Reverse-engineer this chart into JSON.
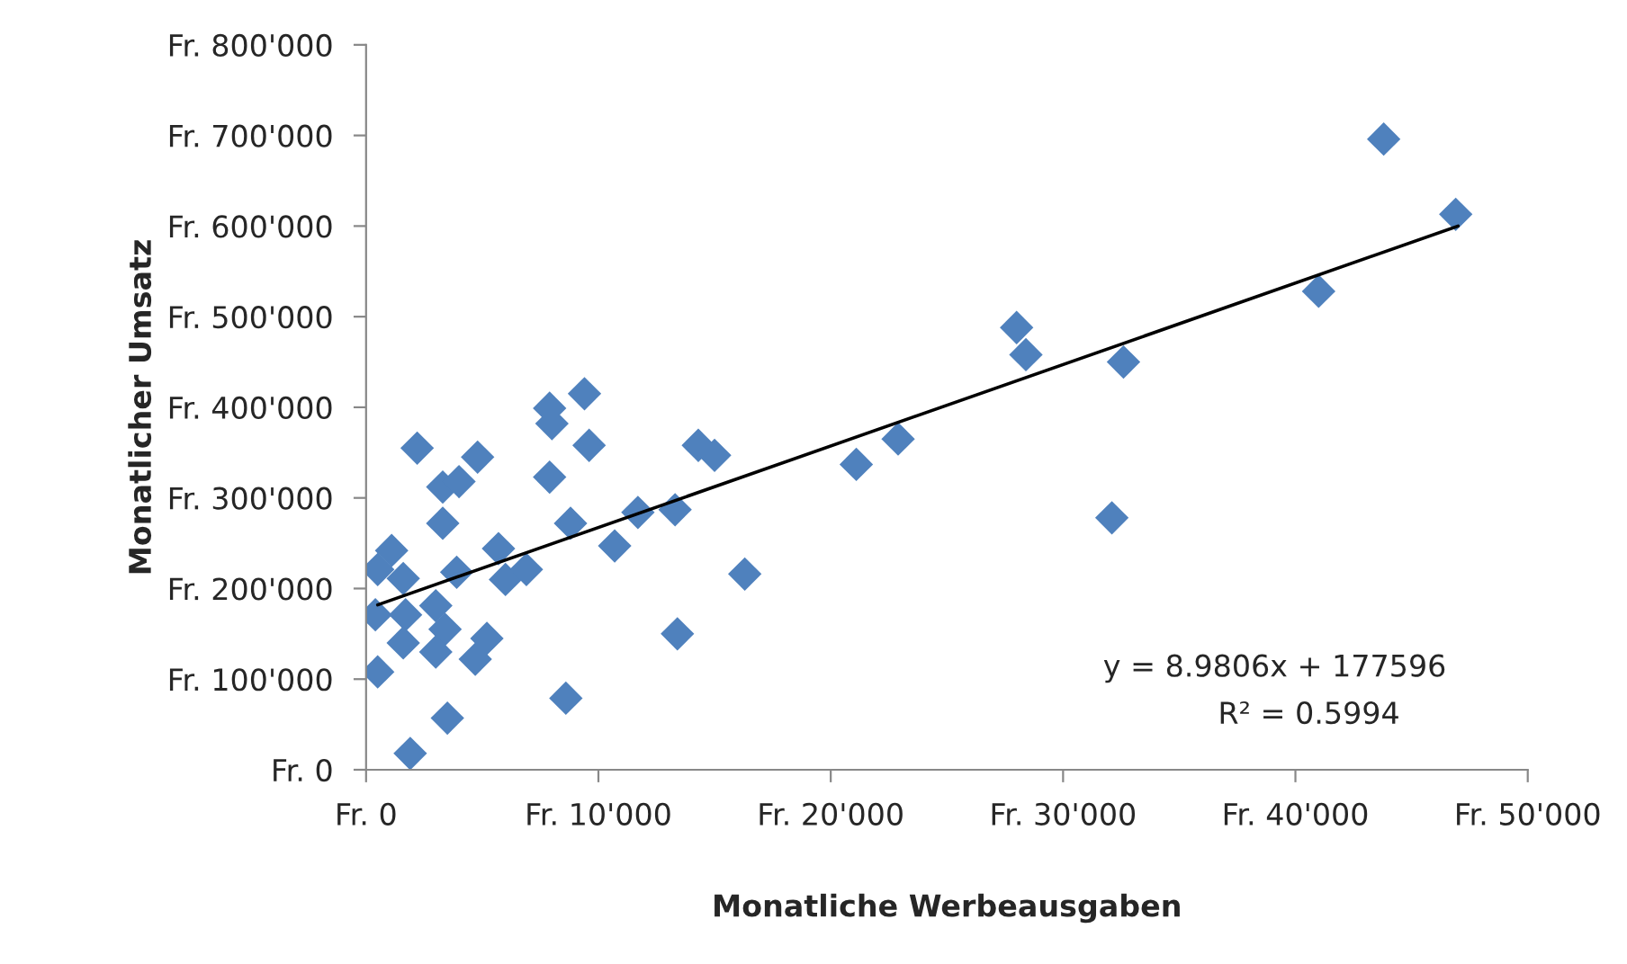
{
  "chart_data": {
    "type": "scatter",
    "xlabel": "Monatliche Werbeausgaben",
    "ylabel": "Monatlicher Umsatz",
    "grid": false,
    "xlim": [
      0,
      50000
    ],
    "xticks": [
      {
        "value": 0,
        "label": "Fr. 0"
      },
      {
        "value": 10000,
        "label": "Fr. 10'000"
      },
      {
        "value": 20000,
        "label": "Fr. 20'000"
      },
      {
        "value": 30000,
        "label": "Fr. 30'000"
      },
      {
        "value": 40000,
        "label": "Fr. 40'000"
      },
      {
        "value": 50000,
        "label": "Fr. 50'000"
      }
    ],
    "ylim": [
      0,
      800000
    ],
    "yticks": [
      {
        "value": 0,
        "label": "Fr. 0"
      },
      {
        "value": 100000,
        "label": "Fr. 100'000"
      },
      {
        "value": 200000,
        "label": "Fr. 200'000"
      },
      {
        "value": 300000,
        "label": "Fr. 300'000"
      },
      {
        "value": 400000,
        "label": "Fr. 400'000"
      },
      {
        "value": 500000,
        "label": "Fr. 500'000"
      },
      {
        "value": 600000,
        "label": "Fr. 600'000"
      },
      {
        "value": 700000,
        "label": "Fr. 700'000"
      },
      {
        "value": 800000,
        "label": "Fr. 800'000"
      }
    ],
    "series": [
      {
        "marker": "diamond",
        "color": "#4f81bd",
        "x": [
          2200,
          1100,
          500,
          1600,
          400,
          1700,
          3000,
          3400,
          1600,
          3000,
          500,
          5200,
          4700,
          3500,
          1900,
          8600,
          3300,
          4000,
          4800,
          3300,
          3900,
          5700,
          6000,
          6900,
          7900,
          7900,
          8000,
          9400,
          9600,
          8800,
          10700,
          11700,
          13300,
          14300,
          15000,
          13400,
          16300,
          21100,
          22900,
          28000,
          28400,
          32600,
          32100,
          41000,
          43800,
          46900
        ],
        "values": [
          355000,
          242000,
          221000,
          211000,
          171000,
          171000,
          181000,
          155000,
          140000,
          130000,
          108000,
          145000,
          122000,
          57000,
          18000,
          79000,
          312000,
          318000,
          345000,
          272000,
          218000,
          244000,
          210000,
          221000,
          323000,
          399000,
          382000,
          415000,
          358000,
          272000,
          247000,
          284000,
          287000,
          358000,
          347000,
          150000,
          216000,
          337000,
          365000,
          488000,
          458000,
          450000,
          278000,
          528000,
          696000,
          613000
        ]
      },
      {
        "type": "line",
        "color": "#000000",
        "x": [
          500,
          47000
        ],
        "values": [
          182000,
          600000
        ]
      }
    ],
    "annotations": [
      "y = 8.9806x + 177596",
      "R² = 0.5994"
    ]
  }
}
